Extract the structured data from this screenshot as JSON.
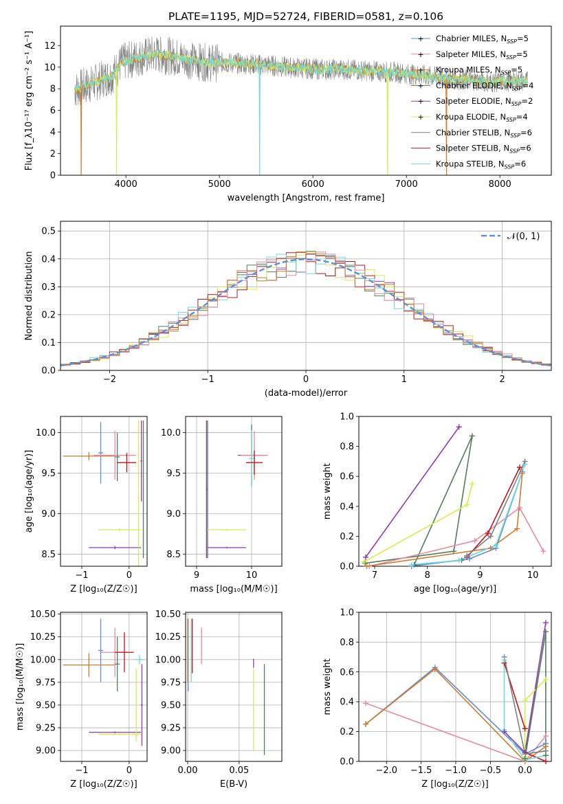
{
  "figure": {
    "title": "PLATE=1195, MJD=52724, FIBERID=0581, z=0.106"
  },
  "colors": {
    "chabrier_miles": "#5b8fd6",
    "salpeter_miles": "#e88aa0",
    "kroupa_miles": "#cf7a2e",
    "chabrier_elodie": "#4f7d5a",
    "salpeter_elodie": "#8e3bb0",
    "kroupa_elodie": "#d6ec4f",
    "chabrier_stelib": "#7f7f7f",
    "salpeter_stelib": "#c0141a",
    "kroupa_stelib": "#73d8dc",
    "gaussian": "#5b8fd6"
  },
  "chart_data": [
    {
      "id": "spectrum",
      "type": "line",
      "xlabel": "wavelength [Angstrom, rest frame]",
      "ylabel": "Flux [f_λ10⁻¹⁷ erg cm⁻² s⁻¹ A⁻¹]",
      "xlim": [
        3300,
        8550
      ],
      "ylim": [
        0,
        13.8
      ],
      "xticks": [
        4000,
        5000,
        6000,
        7000,
        8000
      ],
      "yticks": [
        0,
        2,
        4,
        6,
        8,
        10,
        12
      ],
      "grid": false,
      "legend_position": "right",
      "legend": [
        {
          "label": "Chabrier MILES, N_SSP=5",
          "color_key": "chabrier_miles"
        },
        {
          "label": "Salpeter MILES, N_SSP=5",
          "color_key": "salpeter_miles"
        },
        {
          "label": "Kroupa MILES, N_SSP=5",
          "color_key": "kroupa_miles"
        },
        {
          "label": "Chabrier ELODIE, N_SSP=4",
          "color_key": "chabrier_elodie"
        },
        {
          "label": "Salpeter ELODIE, N_SSP=2",
          "color_key": "salpeter_elodie"
        },
        {
          "label": "Kroupa ELODIE, N_SSP=4",
          "color_key": "kroupa_elodie"
        },
        {
          "label": "Chabrier STELIB, N_SSP=6",
          "color_key": "chabrier_stelib"
        },
        {
          "label": "Salpeter STELIB, N_SSP=6",
          "color_key": "salpeter_stelib"
        },
        {
          "label": "Kroupa STELIB, N_SSP=6",
          "color_key": "kroupa_stelib"
        }
      ],
      "continuum": [
        [
          3450,
          7.9
        ],
        [
          3550,
          8.2
        ],
        [
          3650,
          8.5
        ],
        [
          3750,
          8.9
        ],
        [
          3850,
          9.2
        ],
        [
          3950,
          10.4
        ],
        [
          4050,
          10.7
        ],
        [
          4150,
          10.9
        ],
        [
          4300,
          11.2
        ],
        [
          4500,
          11.0
        ],
        [
          4700,
          10.6
        ],
        [
          4900,
          10.4
        ],
        [
          5100,
          10.4
        ],
        [
          5300,
          10.3
        ],
        [
          5500,
          10.2
        ],
        [
          5700,
          10.0
        ],
        [
          5900,
          9.9
        ],
        [
          6100,
          9.8
        ],
        [
          6300,
          9.8
        ],
        [
          6500,
          9.7
        ],
        [
          6700,
          9.6
        ],
        [
          6900,
          9.5
        ],
        [
          7100,
          9.3
        ],
        [
          7300,
          9.1
        ],
        [
          7500,
          8.9
        ],
        [
          7700,
          8.8
        ],
        [
          7900,
          8.6
        ],
        [
          8100,
          8.7
        ],
        [
          8300,
          8.7
        ]
      ],
      "data_range": [
        3450,
        8300
      ],
      "model_drops": [
        {
          "x": 3520,
          "color_key": "kroupa_miles"
        },
        {
          "x": 3900,
          "color_key": "kroupa_elodie"
        },
        {
          "x": 5430,
          "color_key": "kroupa_stelib"
        },
        {
          "x": 6800,
          "color_key": "kroupa_elodie"
        },
        {
          "x": 7430,
          "color_key": "kroupa_miles"
        }
      ]
    },
    {
      "id": "residuals",
      "type": "histogram",
      "xlabel": "(data-model)/error",
      "ylabel": "Normed distribution",
      "xlim": [
        -2.5,
        2.5
      ],
      "ylim": [
        0,
        0.535
      ],
      "xticks": [
        -2,
        -1,
        0,
        1,
        2
      ],
      "yticks": [
        0.0,
        0.1,
        0.2,
        0.3,
        0.4,
        0.5
      ],
      "grid": true,
      "legend_position": "top-right",
      "legend": [
        {
          "label": "𝒩(0, 1)",
          "color_key": "gaussian"
        }
      ],
      "bin_width": 0.1,
      "series": [
        {
          "color_key": "chabrier_elodie",
          "shift": 0.0,
          "phase": 0.0
        },
        {
          "color_key": "salpeter_elodie",
          "shift": 0.02,
          "phase": 1.1
        },
        {
          "color_key": "kroupa_elodie",
          "shift": 0.04,
          "phase": 2.3
        },
        {
          "color_key": "salpeter_stelib",
          "shift": 0.01,
          "phase": 3.4
        },
        {
          "color_key": "kroupa_stelib",
          "shift": -0.01,
          "phase": 4.6
        },
        {
          "color_key": "salpeter_miles",
          "shift": 0.03,
          "phase": 5.7
        },
        {
          "color_key": "kroupa_miles",
          "shift": 0.0,
          "phase": 0.8
        }
      ]
    },
    {
      "id": "age_vs_Z",
      "type": "errorbar",
      "xlabel": "Z [log₁₀(Z/Z☉)]",
      "ylabel": "age  [log₁₀(age/yr)]",
      "xlim": [
        -1.45,
        0.38
      ],
      "ylim": [
        8.35,
        10.2
      ],
      "xticks": [
        -1,
        0
      ],
      "yticks": [
        8.5,
        9.0,
        9.5,
        10.0
      ],
      "grid": true,
      "points": [
        {
          "x": -0.6,
          "y": 9.75,
          "xerr": 0.05,
          "yerr": 0.38,
          "color_key": "chabrier_miles"
        },
        {
          "x": -0.85,
          "y": 9.71,
          "xerr": 0.55,
          "yerr": 0.05,
          "color_key": "kroupa_miles"
        },
        {
          "x": -0.3,
          "y": 9.72,
          "xerr": 0.45,
          "yerr": 0.3,
          "color_key": "salpeter_miles"
        },
        {
          "x": -0.25,
          "y": 9.7,
          "xerr": 0.05,
          "yerr": 0.3,
          "color_key": "chabrier_elodie"
        },
        {
          "x": -0.3,
          "y": 8.58,
          "xerr": 0.55,
          "yerr": 0.02,
          "color_key": "salpeter_elodie"
        },
        {
          "x": -0.2,
          "y": 8.8,
          "xerr": 0.45,
          "yerr": 0.02,
          "color_key": "kroupa_elodie"
        },
        {
          "x": 0.2,
          "y": 9.2,
          "xerr": 0.02,
          "yerr": 0.95,
          "color_key": "kroupa_elodie"
        },
        {
          "x": -0.05,
          "y": 9.63,
          "xerr": 0.2,
          "yerr": 0.12,
          "color_key": "salpeter_stelib"
        },
        {
          "x": 0.26,
          "y": 9.65,
          "xerr": 0.02,
          "yerr": 0.5,
          "color_key": "salpeter_elodie"
        },
        {
          "x": 0.3,
          "y": 9.3,
          "xerr": 0.01,
          "yerr": 0.85,
          "color_key": "chabrier_elodie"
        }
      ]
    },
    {
      "id": "age_vs_mass",
      "type": "errorbar",
      "xlabel": "mass [log₁₀(M/M☉)]",
      "ylabel": "",
      "xlim": [
        8.8,
        10.55
      ],
      "ylim": [
        8.35,
        10.2
      ],
      "xticks": [
        9,
        10
      ],
      "yticks": [
        8.5,
        9.0,
        9.5,
        10.0
      ],
      "grid": true,
      "points": [
        {
          "x": 9.18,
          "y": 9.3,
          "xerr": 0.01,
          "yerr": 0.85,
          "color_key": "salpeter_elodie"
        },
        {
          "x": 9.2,
          "y": 9.3,
          "xerr": 0.01,
          "yerr": 0.85,
          "color_key": "chabrier_elodie"
        },
        {
          "x": 9.55,
          "y": 8.58,
          "xerr": 0.35,
          "yerr": 0.01,
          "color_key": "salpeter_elodie"
        },
        {
          "x": 9.55,
          "y": 8.8,
          "xerr": 0.35,
          "yerr": 0.01,
          "color_key": "kroupa_elodie"
        },
        {
          "x": 10.0,
          "y": 9.72,
          "xerr": 0.25,
          "yerr": 0.38,
          "color_key": "chabrier_elodie"
        },
        {
          "x": 10.05,
          "y": 9.72,
          "xerr": 0.25,
          "yerr": 0.3,
          "color_key": "salpeter_miles"
        },
        {
          "x": 10.0,
          "y": 9.68,
          "xerr": 0.05,
          "yerr": 0.35,
          "color_key": "kroupa_stelib"
        },
        {
          "x": 10.05,
          "y": 9.63,
          "xerr": 0.15,
          "yerr": 0.15,
          "color_key": "salpeter_stelib"
        }
      ]
    },
    {
      "id": "weight_vs_age",
      "type": "line",
      "xlabel": "age  [log₁₀(age/yr)]",
      "ylabel": "mass weight",
      "xlim": [
        6.7,
        10.35
      ],
      "ylim": [
        0,
        1.0
      ],
      "xticks": [
        7,
        8,
        9,
        10
      ],
      "yticks": [
        0.0,
        0.2,
        0.4,
        0.6,
        0.8,
        1.0
      ],
      "grid": false,
      "series": [
        {
          "color_key": "salpeter_elodie",
          "x": [
            6.83,
            8.6
          ],
          "y": [
            0.06,
            0.93
          ]
        },
        {
          "color_key": "chabrier_elodie",
          "x": [
            6.82,
            8.5,
            8.85,
            7.75,
            8.65
          ],
          "y": [
            0.02,
            0.1,
            0.87,
            0.01,
            0.04
          ]
        },
        {
          "color_key": "kroupa_elodie",
          "x": [
            6.8,
            8.75,
            8.85
          ],
          "y": [
            0.03,
            0.41,
            0.55
          ]
        },
        {
          "color_key": "salpeter_miles",
          "x": [
            6.9,
            8.9,
            9.75,
            10.2
          ],
          "y": [
            0.0,
            0.17,
            0.39,
            0.1
          ]
        },
        {
          "color_key": "chabrier_miles",
          "x": [
            7.7,
            8.8,
            9.3,
            9.8
          ],
          "y": [
            0.0,
            0.05,
            0.12,
            0.63
          ]
        },
        {
          "color_key": "kroupa_miles",
          "x": [
            6.85,
            9.2,
            9.7,
            9.8
          ],
          "y": [
            0.0,
            0.12,
            0.25,
            0.62
          ]
        },
        {
          "color_key": "salpeter_stelib",
          "x": [
            8.75,
            9.15,
            9.75
          ],
          "y": [
            0.06,
            0.22,
            0.66
          ]
        },
        {
          "color_key": "kroupa_stelib",
          "x": [
            7.7,
            8.6,
            9.3,
            9.85
          ],
          "y": [
            0.01,
            0.04,
            0.14,
            0.68
          ]
        },
        {
          "color_key": "chabrier_stelib",
          "x": [
            8.75,
            9.2,
            9.85
          ],
          "y": [
            0.07,
            0.2,
            0.7
          ]
        }
      ]
    },
    {
      "id": "mass_vs_Z",
      "type": "errorbar",
      "xlabel": "Z [log₁₀(Z/Z☉)]",
      "ylabel": "mass [log₁₀(M/M☉)]",
      "xlim": [
        -1.45,
        0.38
      ],
      "ylim": [
        8.88,
        10.52
      ],
      "xticks": [
        -1,
        0
      ],
      "yticks": [
        9.0,
        9.25,
        9.5,
        9.75,
        10.0,
        10.25,
        10.5
      ],
      "grid": true,
      "points": [
        {
          "x": -0.6,
          "y": 10.1,
          "xerr": 0.05,
          "yerr": 0.35,
          "color_key": "chabrier_miles"
        },
        {
          "x": -0.85,
          "y": 9.94,
          "xerr": 0.55,
          "yerr": 0.13,
          "color_key": "kroupa_miles"
        },
        {
          "x": -0.3,
          "y": 10.08,
          "xerr": 0.3,
          "yerr": 0.27,
          "color_key": "salpeter_miles"
        },
        {
          "x": -0.25,
          "y": 9.95,
          "xerr": 0.05,
          "yerr": 0.3,
          "color_key": "chabrier_elodie"
        },
        {
          "x": -0.1,
          "y": 10.08,
          "xerr": 0.2,
          "yerr": 0.22,
          "color_key": "salpeter_stelib"
        },
        {
          "x": -0.3,
          "y": 9.2,
          "xerr": 0.55,
          "yerr": 0.01,
          "color_key": "salpeter_elodie"
        },
        {
          "x": -0.2,
          "y": 9.18,
          "xerr": 0.45,
          "yerr": 0.01,
          "color_key": "kroupa_elodie"
        },
        {
          "x": 0.15,
          "y": 9.5,
          "xerr": 0.02,
          "yerr": 0.4,
          "color_key": "kroupa_elodie"
        },
        {
          "x": 0.27,
          "y": 9.5,
          "xerr": 0.02,
          "yerr": 0.45,
          "color_key": "salpeter_elodie"
        },
        {
          "x": 0.22,
          "y": 10.0,
          "xerr": 0.1,
          "yerr": 0.05,
          "color_key": "kroupa_stelib"
        }
      ]
    },
    {
      "id": "mass_vs_ebv",
      "type": "errorbar",
      "xlabel": "E(B-V)",
      "ylabel": "",
      "xlim": [
        -0.002,
        0.0915
      ],
      "ylim": [
        8.88,
        10.52
      ],
      "xticks": [
        0.0,
        0.05
      ],
      "yticks": [
        9.0,
        9.25,
        9.5,
        9.75,
        10.0,
        10.25,
        10.5
      ],
      "grid": true,
      "points": [
        {
          "x": 0.0005,
          "y": 10.05,
          "xerr": 0.0,
          "yerr": 0.4,
          "color_key": "chabrier_miles"
        },
        {
          "x": 0.0035,
          "y": 10.1,
          "xerr": 0.0,
          "yerr": 0.35,
          "color_key": "kroupa_stelib"
        },
        {
          "x": 0.0045,
          "y": 10.15,
          "xerr": 0.0,
          "yerr": 0.3,
          "color_key": "salpeter_stelib"
        },
        {
          "x": 0.0135,
          "y": 10.15,
          "xerr": 0.0,
          "yerr": 0.2,
          "color_key": "salpeter_miles"
        },
        {
          "x": 0.0,
          "y": 10.1,
          "xerr": 0.0,
          "yerr": 0.35,
          "color_key": "kroupa_miles"
        },
        {
          "x": 0.064,
          "y": 9.45,
          "xerr": 0.0,
          "yerr": 0.45,
          "color_key": "kroupa_elodie"
        },
        {
          "x": 0.064,
          "y": 9.96,
          "xerr": 0.0,
          "yerr": 0.05,
          "color_key": "salpeter_elodie"
        },
        {
          "x": 0.0745,
          "y": 9.45,
          "xerr": 0.0,
          "yerr": 0.5,
          "color_key": "chabrier_elodie"
        }
      ]
    },
    {
      "id": "weight_vs_Z",
      "type": "line",
      "xlabel": "Z [log₁₀(Z/Z☉)]",
      "ylabel": "mass weight",
      "xlim": [
        -2.4,
        0.38
      ],
      "ylim": [
        0,
        1.0
      ],
      "xticks": [
        -2.0,
        -1.5,
        -1.0,
        -0.5,
        0.0
      ],
      "yticks": [
        0.0,
        0.2,
        0.4,
        0.6,
        0.8,
        1.0
      ],
      "grid": true,
      "series": [
        {
          "color_key": "salpeter_miles",
          "x": [
            -2.3,
            0.0,
            0.3
          ],
          "y": [
            0.39,
            0.0,
            0.17
          ]
        },
        {
          "color_key": "chabrier_miles",
          "x": [
            -2.3,
            -1.3,
            0.0,
            0.3
          ],
          "y": [
            0.25,
            0.63,
            0.05,
            0.12
          ]
        },
        {
          "color_key": "kroupa_miles",
          "x": [
            -2.3,
            -1.3,
            0.0,
            0.3
          ],
          "y": [
            0.25,
            0.62,
            0.0,
            0.1
          ]
        },
        {
          "color_key": "salpeter_stelib",
          "x": [
            -0.3,
            0.0,
            0.0,
            0.3
          ],
          "y": [
            0.66,
            0.22,
            0.06,
            0.0
          ]
        },
        {
          "color_key": "chabrier_stelib",
          "x": [
            -0.3,
            0.0,
            0.3
          ],
          "y": [
            0.7,
            0.05,
            0.07
          ]
        },
        {
          "color_key": "kroupa_stelib",
          "x": [
            -0.3,
            -0.3,
            0.0,
            0.3
          ],
          "y": [
            0.68,
            0.21,
            0.01,
            0.04
          ]
        },
        {
          "color_key": "salpeter_elodie",
          "x": [
            -0.3,
            0.0,
            0.3
          ],
          "y": [
            0.2,
            0.06,
            0.93
          ]
        },
        {
          "color_key": "kroupa_elodie",
          "x": [
            0.0,
            0.0,
            0.3
          ],
          "y": [
            0.03,
            0.41,
            0.55
          ]
        },
        {
          "color_key": "chabrier_elodie",
          "x": [
            0.0,
            0.3,
            0.3
          ],
          "y": [
            0.02,
            0.87,
            0.04
          ]
        }
      ]
    }
  ]
}
